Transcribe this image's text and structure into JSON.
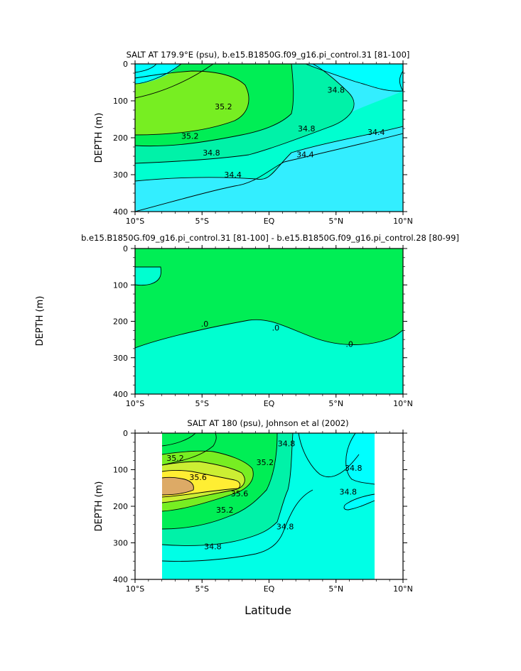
{
  "colors": {
    "c_low": "#33eeff",
    "c_mid": "#00ffd0",
    "c_midhi": "#00f2a8",
    "c_hi": "#00ee55",
    "c_hi2": "#77ee22",
    "c_yel": "#ccee33",
    "c_yel2": "#ffee33",
    "c_orange": "#ddaa66",
    "diff_pos": "#00ee55",
    "diff_neg": "#00ffd0",
    "obs_bg": "#00ffe6",
    "cyan_surface": "#00ffff"
  },
  "chart_data": [
    {
      "type": "contour",
      "title": "SALT AT 179.9°E (psu), b.e15.B1850G.f09_g16.pi_control.31 [81-100]",
      "xlabel": "",
      "ylabel": "DEPTH (m)",
      "x_ticks": [
        "10°S",
        "5°S",
        "EQ",
        "5°N",
        "10°N"
      ],
      "x_range_deg": [
        -10,
        10
      ],
      "y_ticks": [
        "0",
        "100",
        "200",
        "300",
        "400"
      ],
      "y_range_m": [
        0,
        400
      ],
      "contour_labels": [
        {
          "text": "35.2",
          "x": -3.4,
          "y": 115
        },
        {
          "text": "35.2",
          "x": -5.9,
          "y": 195
        },
        {
          "text": "34.8",
          "x": -4.3,
          "y": 240
        },
        {
          "text": "34.4",
          "x": -2.7,
          "y": 300
        },
        {
          "text": "34.8",
          "x": 5.0,
          "y": 70
        },
        {
          "text": "34.8",
          "x": 2.8,
          "y": 175
        },
        {
          "text": "34.4",
          "x": 2.7,
          "y": 245
        },
        {
          "text": "34.4",
          "x": 8.0,
          "y": 185
        }
      ]
    },
    {
      "type": "contour",
      "title": "b.e15.B1850G.f09_g16.pi_control.31 [81-100] - b.e15.B1850G.f09_g16.pi_control.28 [80-99]",
      "xlabel": "",
      "ylabel": "DEPTH (m)",
      "x_ticks": [
        "10°S",
        "5°S",
        "EQ",
        "5°N",
        "10°N"
      ],
      "x_range_deg": [
        -10,
        10
      ],
      "y_ticks": [
        "0",
        "100",
        "200",
        "300",
        "400"
      ],
      "y_range_m": [
        0,
        400
      ],
      "contour_labels": [
        {
          "text": ".0",
          "x": -4.8,
          "y": 207
        },
        {
          "text": ".0",
          "x": 0.5,
          "y": 218
        },
        {
          "text": ".0",
          "x": 6.0,
          "y": 262
        }
      ]
    },
    {
      "type": "contour",
      "title": "SALT AT 180 (psu), Johnson et al (2002)",
      "xlabel": "Latitude",
      "ylabel": "DEPTH (m)",
      "x_ticks": [
        "10°S",
        "5°S",
        "EQ",
        "5°N",
        "10°N"
      ],
      "x_range_deg": [
        -10,
        10
      ],
      "y_ticks": [
        "0",
        "100",
        "200",
        "300",
        "400"
      ],
      "y_range_m": [
        0,
        400
      ],
      "data_x_range_deg": [
        -8,
        8
      ],
      "contour_labels": [
        {
          "text": "35.2",
          "x": -7.0,
          "y": 68
        },
        {
          "text": "35.6",
          "x": -5.3,
          "y": 120
        },
        {
          "text": "35.6",
          "x": -2.2,
          "y": 165
        },
        {
          "text": "35.2",
          "x": -3.3,
          "y": 210
        },
        {
          "text": "35.2",
          "x": -0.3,
          "y": 80
        },
        {
          "text": "34.8",
          "x": 1.3,
          "y": 28
        },
        {
          "text": "34.8",
          "x": 6.3,
          "y": 95
        },
        {
          "text": "34.8",
          "x": 5.9,
          "y": 160
        },
        {
          "text": "34.8",
          "x": 1.2,
          "y": 255
        },
        {
          "text": "34.8",
          "x": -4.2,
          "y": 310
        }
      ]
    }
  ]
}
